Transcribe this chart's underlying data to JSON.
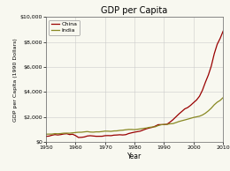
{
  "title": "GDP per Capita",
  "xlabel": "Year",
  "ylabel": "GDP per Capita (1990 Dollars)",
  "xlim": [
    1950,
    2010
  ],
  "ylim": [
    0,
    10000
  ],
  "yticks": [
    0,
    2000,
    4000,
    6000,
    8000,
    10000
  ],
  "ytick_labels": [
    "$0",
    "$2,000",
    "$4,000",
    "$6,000",
    "$8,000",
    "$10,000"
  ],
  "xticks": [
    1950,
    1960,
    1970,
    1980,
    1990,
    2000,
    2010
  ],
  "china_color": "#990000",
  "india_color": "#888822",
  "background_color": "#f8f8f0",
  "plot_bg_color": "#f8f8f0",
  "legend_labels": [
    "China",
    "India"
  ],
  "grid_color": "#cccccc",
  "china_data": {
    "years": [
      1950,
      1951,
      1952,
      1953,
      1954,
      1955,
      1956,
      1957,
      1958,
      1959,
      1960,
      1961,
      1962,
      1963,
      1964,
      1965,
      1966,
      1967,
      1968,
      1969,
      1970,
      1971,
      1972,
      1973,
      1974,
      1975,
      1976,
      1977,
      1978,
      1979,
      1980,
      1981,
      1982,
      1983,
      1984,
      1985,
      1986,
      1987,
      1988,
      1989,
      1990,
      1991,
      1992,
      1993,
      1994,
      1995,
      1996,
      1997,
      1998,
      1999,
      2000,
      2001,
      2002,
      2003,
      2004,
      2005,
      2006,
      2007,
      2008,
      2009,
      2010
    ],
    "values": [
      448,
      468,
      537,
      587,
      558,
      589,
      636,
      659,
      590,
      617,
      510,
      356,
      367,
      399,
      475,
      499,
      475,
      451,
      453,
      454,
      501,
      510,
      502,
      543,
      555,
      575,
      558,
      582,
      671,
      731,
      783,
      824,
      870,
      963,
      1051,
      1119,
      1168,
      1263,
      1383,
      1388,
      1386,
      1418,
      1583,
      1779,
      2005,
      2234,
      2437,
      2646,
      2753,
      2934,
      3152,
      3358,
      3661,
      4143,
      4779,
      5358,
      6082,
      7060,
      7819,
      8295,
      8874
    ]
  },
  "india_data": {
    "years": [
      1950,
      1951,
      1952,
      1953,
      1954,
      1955,
      1956,
      1957,
      1958,
      1959,
      1960,
      1961,
      1962,
      1963,
      1964,
      1965,
      1966,
      1967,
      1968,
      1969,
      1970,
      1971,
      1972,
      1973,
      1974,
      1975,
      1976,
      1977,
      1978,
      1979,
      1980,
      1981,
      1982,
      1983,
      1984,
      1985,
      1986,
      1987,
      1988,
      1989,
      1990,
      1991,
      1992,
      1993,
      1994,
      1995,
      1996,
      1997,
      1998,
      1999,
      2000,
      2001,
      2002,
      2003,
      2004,
      2005,
      2006,
      2007,
      2008,
      2009,
      2010
    ],
    "values": [
      619,
      628,
      629,
      665,
      656,
      672,
      702,
      707,
      701,
      726,
      753,
      775,
      777,
      806,
      831,
      793,
      783,
      808,
      806,
      834,
      868,
      862,
      847,
      880,
      886,
      924,
      942,
      974,
      1001,
      1002,
      984,
      1015,
      1046,
      1085,
      1115,
      1167,
      1196,
      1210,
      1308,
      1374,
      1409,
      1401,
      1449,
      1469,
      1546,
      1632,
      1699,
      1760,
      1825,
      1893,
      1962,
      2011,
      2060,
      2159,
      2301,
      2489,
      2708,
      2975,
      3183,
      3328,
      3551
    ]
  }
}
